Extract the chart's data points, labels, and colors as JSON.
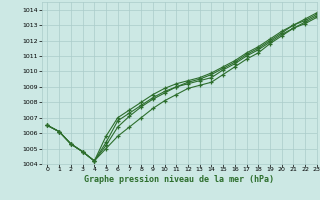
{
  "background_color": "#cce8e4",
  "grid_color": "#aaccca",
  "line_color": "#2d6e2d",
  "title": "Graphe pression niveau de la mer (hPa)",
  "xlim": [
    -0.5,
    23
  ],
  "ylim": [
    1004,
    1014.5
  ],
  "xticks": [
    0,
    1,
    2,
    3,
    4,
    5,
    6,
    7,
    8,
    9,
    10,
    11,
    12,
    13,
    14,
    15,
    16,
    17,
    18,
    19,
    20,
    21,
    22,
    23
  ],
  "yticks": [
    1004,
    1005,
    1006,
    1007,
    1008,
    1009,
    1010,
    1011,
    1012,
    1013,
    1014
  ],
  "lines": [
    [
      1006.5,
      1006.1,
      1005.3,
      1004.8,
      1004.2,
      1005.0,
      1005.8,
      1006.4,
      1007.0,
      1007.6,
      1008.1,
      1008.5,
      1008.9,
      1009.1,
      1009.3,
      1009.8,
      1010.3,
      1010.8,
      1011.2,
      1011.8,
      1012.3,
      1012.8,
      1013.1,
      1013.5
    ],
    [
      1006.5,
      1006.1,
      1005.3,
      1004.8,
      1004.2,
      1005.2,
      1006.4,
      1007.1,
      1007.7,
      1008.2,
      1008.6,
      1009.0,
      1009.2,
      1009.4,
      1009.6,
      1010.1,
      1010.5,
      1011.0,
      1011.4,
      1011.9,
      1012.4,
      1012.8,
      1013.2,
      1013.6
    ],
    [
      1006.5,
      1006.1,
      1005.3,
      1004.8,
      1004.2,
      1005.4,
      1006.8,
      1007.3,
      1007.8,
      1008.3,
      1008.7,
      1009.0,
      1009.3,
      1009.5,
      1009.8,
      1010.2,
      1010.6,
      1011.1,
      1011.5,
      1012.0,
      1012.5,
      1013.0,
      1013.3,
      1013.7
    ],
    [
      1006.5,
      1006.1,
      1005.3,
      1004.8,
      1004.2,
      1005.8,
      1007.0,
      1007.5,
      1008.0,
      1008.5,
      1008.9,
      1009.2,
      1009.4,
      1009.6,
      1009.9,
      1010.3,
      1010.7,
      1011.2,
      1011.6,
      1012.1,
      1012.6,
      1013.0,
      1013.4,
      1013.8
    ]
  ]
}
